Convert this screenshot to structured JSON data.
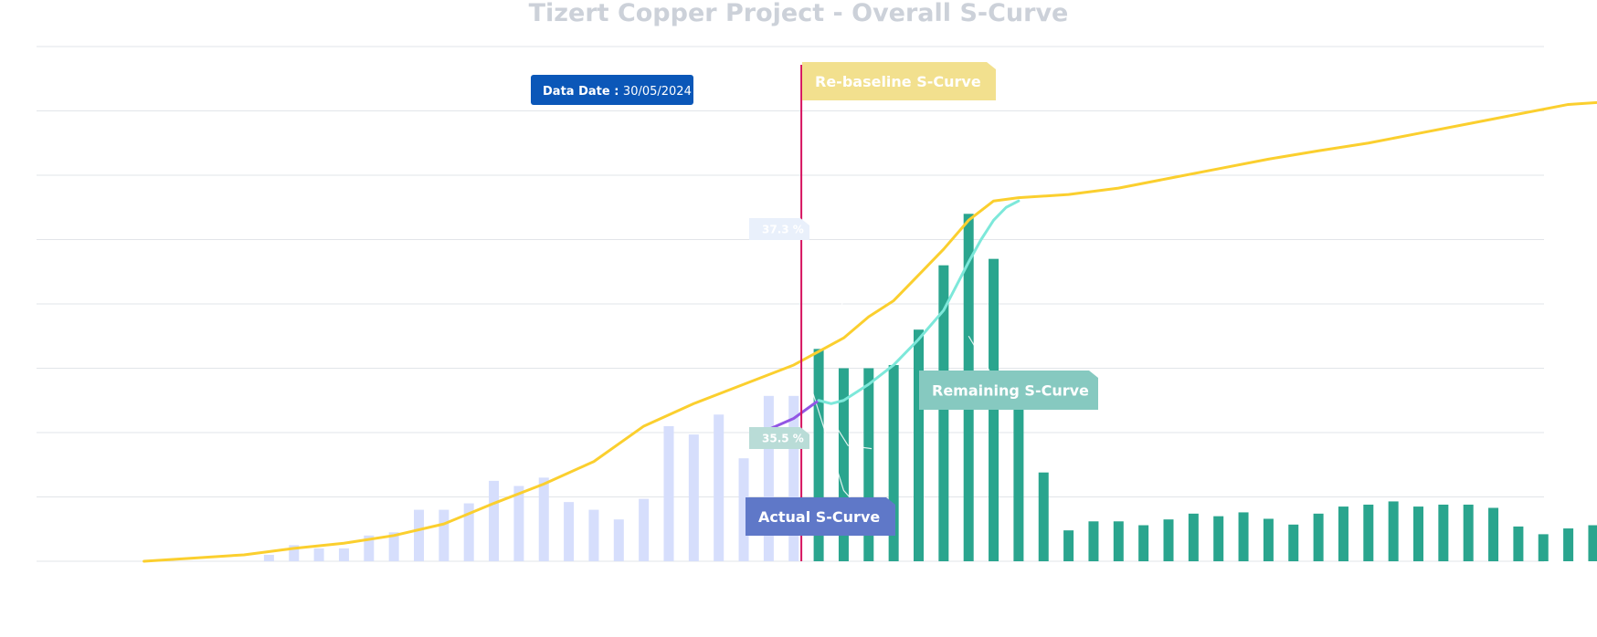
{
  "chart_data": {
    "type": "bar",
    "title": "Tizert Copper Project - Overall S-Curve",
    "xlabel": "",
    "ylabel": "",
    "ylim": [
      0,
      8
    ],
    "grid": true,
    "data_date": {
      "label": "Data Date : ",
      "value": "30/05/2024",
      "index": 26
    },
    "bars_actual": {
      "color": "#d6defc",
      "values": [
        0,
        0,
        0,
        0,
        0.1,
        0.25,
        0.2,
        0.2,
        0.4,
        0.45,
        0.8,
        0.8,
        0.9,
        1.25,
        1.17,
        1.3,
        0.92,
        0.8,
        0.65,
        0.97,
        2.1,
        1.97,
        2.28,
        1.6,
        2.57,
        2.57
      ]
    },
    "bars_remaining": {
      "color": "#2aa58e",
      "values": [
        3.3,
        3.0,
        3.0,
        3.05,
        3.6,
        4.6,
        5.4,
        4.7,
        2.4,
        1.38,
        0.48,
        0.62,
        0.62,
        0.56,
        0.65,
        0.74,
        0.7,
        0.76,
        0.66,
        0.57,
        0.74,
        0.85,
        0.88,
        0.93,
        0.85,
        0.88,
        0.88,
        0.83,
        0.54,
        0.42,
        0.51,
        0.56,
        0.56,
        0.7
      ]
    },
    "series": [
      {
        "name": "Re-baseline S-Curve",
        "color": "#fbcf2e",
        "x": [
          -1,
          1,
          3,
          5,
          7,
          9,
          11,
          13,
          15,
          17,
          19,
          21,
          23,
          25,
          27,
          28,
          29,
          30,
          31,
          32,
          33,
          34,
          36,
          38,
          40,
          42,
          44,
          46,
          48,
          50,
          52,
          54,
          56,
          58,
          60
        ],
        "y": [
          0,
          0.05,
          0.1,
          0.2,
          0.28,
          0.4,
          0.58,
          0.9,
          1.2,
          1.55,
          2.1,
          2.45,
          2.75,
          3.05,
          3.47,
          3.8,
          4.05,
          4.45,
          4.85,
          5.3,
          5.6,
          5.65,
          5.7,
          5.8,
          5.95,
          6.1,
          6.25,
          6.38,
          6.5,
          6.65,
          6.8,
          6.95,
          7.1,
          7.15,
          7.25
        ]
      },
      {
        "name": "Actual S-Curve",
        "color": "#9256e4",
        "x": [
          24,
          25,
          26
        ],
        "y": [
          2.05,
          2.22,
          2.5
        ]
      },
      {
        "name": "Remaining S-Curve",
        "color": "#7de8da",
        "x": [
          26,
          26.5,
          27,
          28,
          29,
          30,
          31,
          32,
          32.5,
          33,
          33.5,
          34
        ],
        "y": [
          2.5,
          2.45,
          2.5,
          2.75,
          3.05,
          3.45,
          3.9,
          4.65,
          5.0,
          5.3,
          5.5,
          5.6
        ]
      }
    ],
    "annotations": {
      "pct_top": "37.3 %",
      "pct_bottom": "35.5 %"
    },
    "colors": {
      "data_date_line": "#d6135f",
      "data_date_box": "#0b57b8",
      "rebaseline_box": "#f2e08e",
      "remaining_box": "#86c9c0",
      "actual_box": "#5f78c8",
      "grid": "#e2e5e9"
    }
  }
}
